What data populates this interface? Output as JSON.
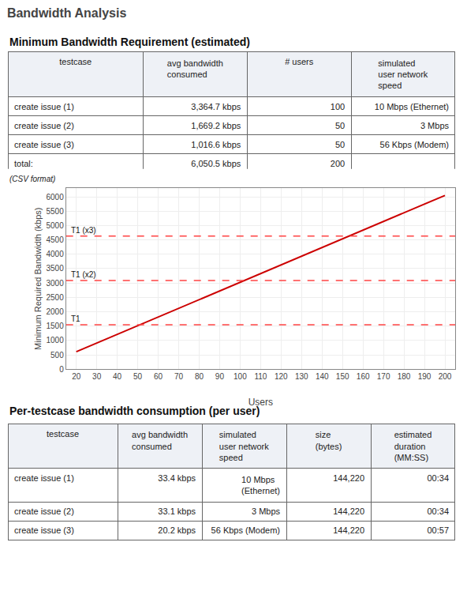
{
  "title": "Bandwidth Analysis",
  "chart_data": [
    {
      "type": "table",
      "title": "Minimum Bandwidth Requirement (estimated)",
      "headers": [
        "testcase",
        "avg bandwidth\nconsumed",
        "# users",
        "simulated\nuser network\nspeed"
      ],
      "rows": [
        [
          "create issue (1)",
          "3,364.7 kbps",
          "100",
          "10 Mbps (Ethernet)"
        ],
        [
          "create issue (2)",
          "1,669.2 kbps",
          "50",
          "3 Mbps"
        ],
        [
          "create issue (3)",
          "1,016.6 kbps",
          "50",
          "56 Kbps (Modem)"
        ],
        [
          "total:",
          "6,050.5 kbps",
          "200",
          ""
        ]
      ],
      "annotations": [
        "(CSV format)"
      ]
    },
    {
      "type": "line",
      "xlabel": "Users",
      "ylabel": "Minimum Required Bandwidth (kbps)",
      "x": [
        20,
        200
      ],
      "values": [
        605.0,
        6050.5
      ],
      "color": "#cc0000",
      "xlim": [
        15,
        205
      ],
      "ylim": [
        0,
        6300
      ],
      "xticks": [
        20,
        30,
        40,
        50,
        60,
        70,
        80,
        90,
        100,
        110,
        120,
        130,
        140,
        150,
        160,
        170,
        180,
        190,
        200
      ],
      "yticks": [
        0,
        500,
        1000,
        1500,
        2000,
        2500,
        3000,
        3500,
        4000,
        4500,
        5000,
        5500,
        6000
      ],
      "grid": true,
      "reference_lines": [
        {
          "value": 1544,
          "label": "T1",
          "color": "#ff4444",
          "line_style": "dashed"
        },
        {
          "value": 3088,
          "label": "T1 (x2)",
          "color": "#ff4444",
          "line_style": "dashed"
        },
        {
          "value": 4632,
          "label": "T1 (x3)",
          "color": "#ff4444",
          "line_style": "dashed"
        }
      ]
    },
    {
      "type": "table",
      "title": "Per-testcase bandwidth consumption (per user)",
      "headers": [
        "testcase",
        "avg bandwidth\nconsumed",
        "simulated\nuser network\nspeed",
        "size\n(bytes)",
        "estimated\nduration\n(MM:SS)"
      ],
      "rows": [
        [
          "create issue (1)",
          "33.4 kbps",
          "10 Mbps (Ethernet)",
          "144,220",
          "00:34"
        ],
        [
          "create issue (2)",
          "33.1 kbps",
          "3 Mbps",
          "144,220",
          "00:34"
        ],
        [
          "create issue (3)",
          "20.2 kbps",
          "56 Kbps (Modem)",
          "144,220",
          "00:57"
        ]
      ]
    }
  ]
}
